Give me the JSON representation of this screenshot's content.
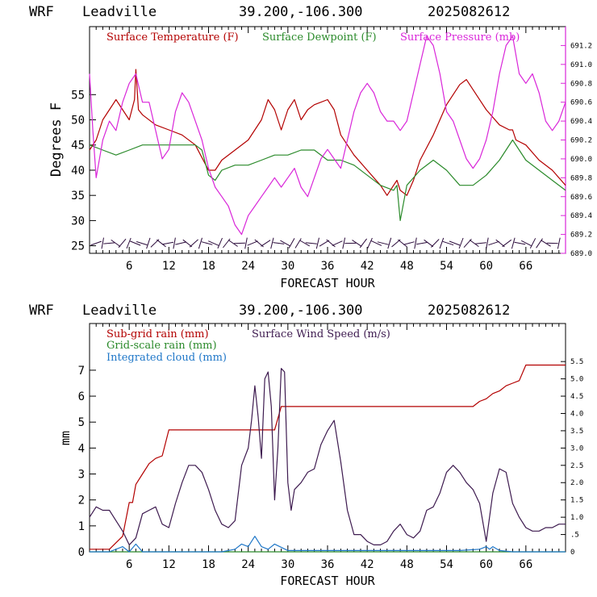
{
  "chart_data": [
    {
      "type": "line",
      "header": {
        "model": "WRF",
        "station": "Leadville",
        "coords": "39.200,-106.300",
        "run": "2025082612"
      },
      "xlabel": "FORECAST HOUR",
      "ylabel": "Degrees F",
      "xlim": [
        0,
        72
      ],
      "ylim": [
        23.5,
        68.5
      ],
      "y2lim": [
        689.0,
        691.4
      ],
      "xticks": [
        6,
        12,
        18,
        24,
        30,
        36,
        42,
        48,
        54,
        60,
        66
      ],
      "yticks": [
        25,
        30,
        35,
        40,
        45,
        50,
        55
      ],
      "y2ticks": [
        "689.0",
        "689.2",
        "689.4",
        "689.6",
        "689.8",
        "690.0",
        "690.2",
        "690.4",
        "690.6",
        "690.8",
        "691.0",
        "691.2"
      ],
      "series": [
        {
          "name": "Surface Temperature (F)",
          "color": "#b30000",
          "axis": "left",
          "x": [
            0,
            1,
            2,
            3,
            4,
            5,
            6,
            6.8,
            7,
            7.4,
            8,
            10,
            12,
            14,
            16,
            18,
            19,
            20,
            22,
            24,
            26,
            27,
            28,
            29,
            30,
            31,
            32,
            33,
            34,
            36,
            37,
            38,
            40,
            42,
            44,
            45,
            46,
            46.5,
            47,
            48,
            49,
            50,
            52,
            54,
            56,
            57,
            58,
            60,
            62,
            63.5,
            64,
            64.5,
            66,
            68,
            70,
            72
          ],
          "y": [
            44,
            46,
            50,
            52,
            54,
            52,
            50,
            54,
            60,
            52,
            51,
            49,
            48,
            47,
            45,
            40,
            40,
            42,
            44,
            46,
            50,
            54,
            52,
            48,
            52,
            54,
            50,
            52,
            53,
            54,
            52,
            47,
            43,
            40,
            37,
            35,
            37,
            38,
            36,
            35,
            38,
            42,
            47,
            53,
            57,
            58,
            56,
            52,
            49,
            48,
            48,
            46,
            45,
            42,
            40,
            37
          ]
        },
        {
          "name": "Surface Dewpoint (F)",
          "color": "#2a8a2a",
          "axis": "left",
          "x": [
            0,
            2,
            4,
            6,
            8,
            10,
            12,
            14,
            16,
            17,
            18,
            19,
            20,
            22,
            24,
            26,
            28,
            30,
            32,
            34,
            36,
            38,
            40,
            42,
            44,
            46,
            46.5,
            47,
            48,
            50,
            52,
            54,
            56,
            58,
            60,
            62,
            64,
            65,
            66,
            68,
            70,
            72
          ],
          "y": [
            45,
            44,
            43,
            44,
            45,
            45,
            45,
            45,
            45,
            44,
            39,
            38,
            40,
            41,
            41,
            42,
            43,
            43,
            44,
            44,
            42,
            42,
            41,
            39,
            37,
            36,
            37,
            30,
            37,
            40,
            42,
            40,
            37,
            37,
            39,
            42,
            46,
            44,
            42,
            40,
            38,
            36
          ]
        },
        {
          "name": "Surface Pressure (mb)",
          "color": "#d926d9",
          "axis": "right",
          "x": [
            0,
            0.5,
            1,
            2,
            3,
            4,
            5,
            6,
            7,
            8,
            9,
            10,
            11,
            12,
            13,
            14,
            15,
            16,
            17,
            18,
            19,
            20,
            21,
            22,
            23,
            24,
            25,
            26,
            27,
            28,
            29,
            30,
            31,
            32,
            33,
            34,
            35,
            36,
            37,
            38,
            39,
            40,
            41,
            42,
            43,
            44,
            45,
            46,
            47,
            48,
            49,
            50,
            51,
            52,
            53,
            54,
            55,
            56,
            57,
            58,
            59,
            60,
            61,
            62,
            63,
            64,
            65,
            66,
            67,
            68,
            69,
            70,
            71,
            72
          ],
          "y": [
            690.9,
            690.3,
            689.8,
            690.2,
            690.4,
            690.3,
            690.6,
            690.8,
            690.9,
            690.6,
            690.6,
            690.3,
            690.0,
            690.1,
            690.5,
            690.7,
            690.6,
            690.4,
            690.2,
            689.9,
            689.7,
            689.6,
            689.5,
            689.3,
            689.2,
            689.4,
            689.5,
            689.6,
            689.7,
            689.8,
            689.7,
            689.8,
            689.9,
            689.7,
            689.6,
            689.8,
            690.0,
            690.1,
            690.0,
            689.9,
            690.2,
            690.5,
            690.7,
            690.8,
            690.7,
            690.5,
            690.4,
            690.4,
            690.3,
            690.4,
            690.7,
            691.0,
            691.3,
            691.2,
            690.9,
            690.5,
            690.4,
            690.2,
            690.0,
            689.9,
            690.0,
            690.2,
            690.5,
            690.9,
            691.2,
            691.3,
            690.9,
            690.8,
            690.9,
            690.7,
            690.4,
            690.3,
            690.4,
            690.6
          ]
        }
      ],
      "wind_barbs": {
        "y": 25.5,
        "x_start": 1,
        "x_end": 71,
        "count": 72
      }
    },
    {
      "type": "line",
      "header": {
        "model": "WRF",
        "station": "Leadville",
        "coords": "39.200,-106.300",
        "run": "2025082612"
      },
      "xlabel": "FORECAST HOUR",
      "ylabel": "mm",
      "xlim": [
        0,
        72
      ],
      "ylim": [
        0,
        8.8
      ],
      "y2lim": [
        0,
        6.6
      ],
      "xticks": [
        6,
        12,
        18,
        24,
        30,
        36,
        42,
        48,
        54,
        60,
        66
      ],
      "yticks": [
        0,
        1,
        2,
        3,
        4,
        5,
        6,
        7
      ],
      "y2ticks": [
        "0",
        ".5",
        "1.0",
        "1.5",
        "2.0",
        "2.5",
        "3.0",
        "3.5",
        "4.0",
        "4.5",
        "5.0",
        "5.5"
      ],
      "series": [
        {
          "name": "Sub-grid rain (mm)",
          "color": "#b30000",
          "axis": "left",
          "x": [
            0,
            3,
            5,
            6,
            6.5,
            7,
            8,
            9,
            10,
            11,
            12,
            14,
            20,
            28,
            29,
            58,
            59,
            60,
            61,
            62,
            63,
            64,
            65,
            66,
            72
          ],
          "y": [
            0.1,
            0.1,
            0.6,
            1.9,
            1.9,
            2.6,
            3.0,
            3.4,
            3.6,
            3.7,
            4.7,
            4.7,
            4.7,
            4.7,
            5.6,
            5.6,
            5.8,
            5.9,
            6.1,
            6.2,
            6.4,
            6.5,
            6.6,
            7.2,
            7.2
          ]
        },
        {
          "name": "Grid-scale rain (mm)",
          "color": "#2a8a2a",
          "axis": "left",
          "x": [
            0,
            72
          ],
          "y": [
            0,
            0
          ]
        },
        {
          "name": "Integrated cloud (mm)",
          "color": "#1f77c8",
          "axis": "left",
          "x": [
            0,
            3,
            4,
            5,
            6,
            7,
            8,
            10,
            12,
            20,
            22,
            23,
            24,
            24.5,
            25,
            26,
            27,
            28,
            30,
            36,
            44,
            50,
            56,
            59,
            60,
            60.5,
            61,
            62,
            64,
            72
          ],
          "y": [
            0,
            0,
            0.1,
            0.2,
            0,
            0.3,
            0,
            0,
            0,
            0,
            0.1,
            0.3,
            0.2,
            0.4,
            0.6,
            0.2,
            0.1,
            0.3,
            0.05,
            0.05,
            0.05,
            0.05,
            0.05,
            0.1,
            0.2,
            0.1,
            0.2,
            0.05,
            0,
            0
          ]
        },
        {
          "name": "Surface Wind Speed (m/s)",
          "color": "#3d1a4f",
          "axis": "right",
          "x": [
            0,
            1,
            2,
            3,
            4,
            5,
            6,
            7,
            8,
            9,
            10,
            11,
            12,
            13,
            14,
            15,
            16,
            17,
            18,
            19,
            20,
            21,
            22,
            23,
            24,
            24.5,
            25,
            25.5,
            26,
            26.5,
            27,
            27.5,
            28,
            28.5,
            29,
            29.5,
            30,
            30.5,
            31,
            32,
            33,
            34,
            35,
            36,
            37,
            38,
            39,
            40,
            41,
            42,
            43,
            44,
            45,
            46,
            47,
            48,
            49,
            50,
            51,
            52,
            53,
            54,
            55,
            56,
            57,
            58,
            59,
            60,
            61,
            62,
            63,
            64,
            65,
            66,
            67,
            68,
            69,
            70,
            71,
            72
          ],
          "y": [
            1.0,
            1.3,
            1.2,
            1.2,
            0.9,
            0.6,
            0.2,
            0.4,
            1.1,
            1.2,
            1.3,
            0.8,
            0.7,
            1.4,
            2.0,
            2.5,
            2.5,
            2.3,
            1.8,
            1.2,
            0.8,
            0.7,
            0.9,
            2.5,
            3.0,
            3.8,
            4.8,
            3.9,
            2.7,
            5.0,
            5.2,
            4.2,
            1.5,
            3.0,
            5.3,
            5.2,
            2.0,
            1.2,
            1.8,
            2.0,
            2.3,
            2.4,
            3.1,
            3.5,
            3.8,
            2.6,
            1.2,
            0.5,
            0.5,
            0.3,
            0.2,
            0.2,
            0.3,
            0.6,
            0.8,
            0.5,
            0.4,
            0.6,
            1.2,
            1.3,
            1.7,
            2.3,
            2.5,
            2.3,
            2.0,
            1.8,
            1.4,
            0.3,
            1.7,
            2.4,
            2.3,
            1.4,
            1.0,
            0.7,
            0.6,
            0.6,
            0.7,
            0.7,
            0.8,
            0.8
          ]
        }
      ]
    }
  ]
}
